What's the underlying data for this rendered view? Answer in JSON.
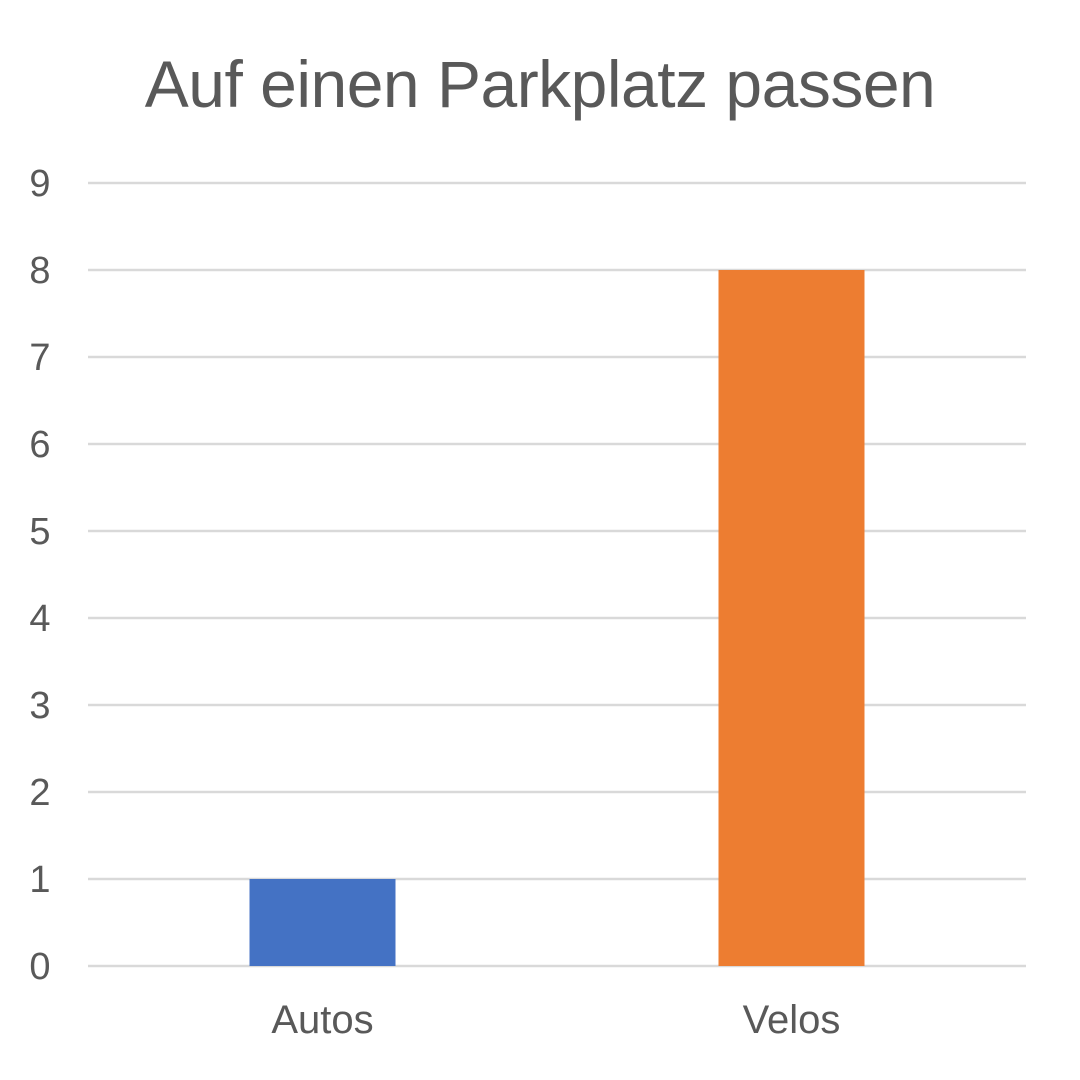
{
  "chart_data": {
    "type": "bar",
    "title": "Auf einen Parkplatz passen",
    "xlabel": "",
    "ylabel": "",
    "categories": [
      "Autos",
      "Velos"
    ],
    "values": [
      1,
      8
    ],
    "bar_colors": [
      "#4472C4",
      "#ED7D31"
    ],
    "ylim": [
      0,
      9
    ],
    "yticks": [
      0,
      1,
      2,
      3,
      4,
      5,
      6,
      7,
      8,
      9
    ],
    "grid": true,
    "grid_color": "#D9D9D9",
    "text_color": "#595959",
    "legend": "none"
  }
}
